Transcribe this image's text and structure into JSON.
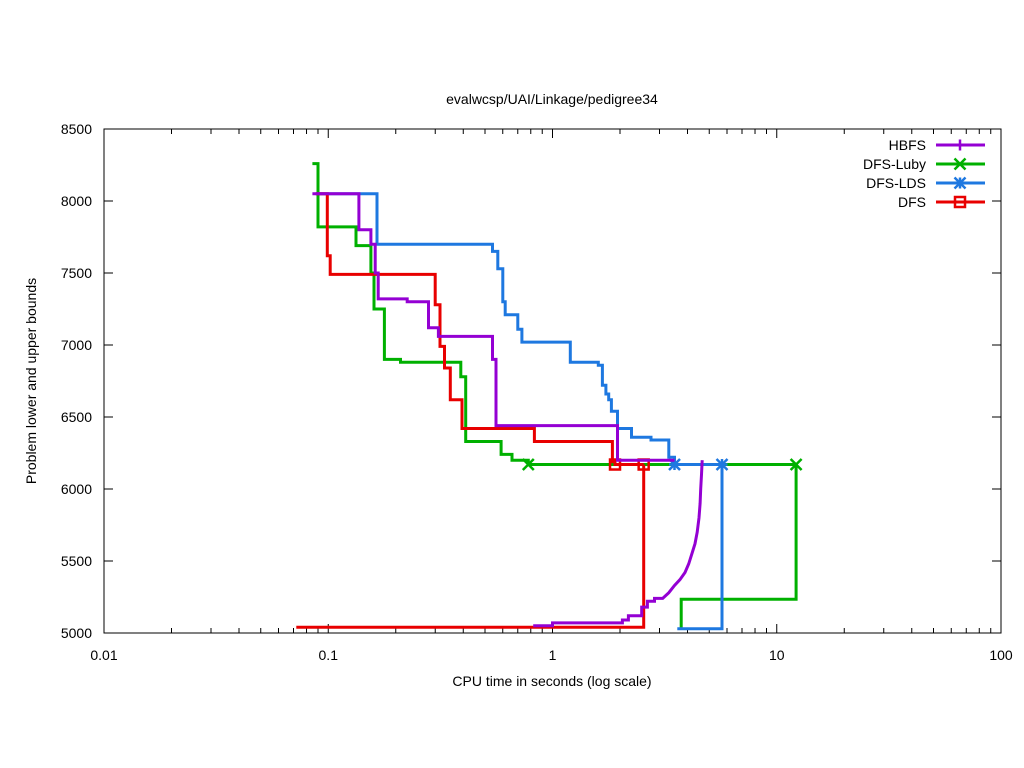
{
  "chart_data": {
    "type": "line",
    "title": "evalwcsp/UAI/Linkage/pedigree34",
    "xlabel": "CPU time in seconds (log scale)",
    "ylabel": "Problem lower and upper bounds",
    "x_scale": "log",
    "xlim": [
      0.01,
      100
    ],
    "ylim": [
      5000,
      8500
    ],
    "x_ticks": [
      0.01,
      0.1,
      1,
      10,
      100
    ],
    "x_tick_labels": [
      "0.01",
      "0.1",
      "1",
      "10",
      "100"
    ],
    "y_ticks": [
      5000,
      5500,
      6000,
      6500,
      7000,
      7500,
      8000,
      8500
    ],
    "y_tick_labels": [
      "5000",
      "5500",
      "6000",
      "6500",
      "7000",
      "7500",
      "8000",
      "8500"
    ],
    "grid": false,
    "legend_position": "top-right",
    "series": [
      {
        "name": "HBFS",
        "color": "#9400d3",
        "marker": "plus",
        "upper": [
          [
            0.085,
            8050
          ],
          [
            0.137,
            8050
          ],
          [
            0.137,
            7800
          ],
          [
            0.155,
            7800
          ],
          [
            0.155,
            7700
          ],
          [
            0.162,
            7700
          ],
          [
            0.162,
            7500
          ],
          [
            0.167,
            7500
          ],
          [
            0.167,
            7320
          ],
          [
            0.225,
            7320
          ],
          [
            0.225,
            7300
          ],
          [
            0.28,
            7300
          ],
          [
            0.28,
            7120
          ],
          [
            0.31,
            7120
          ],
          [
            0.31,
            7060
          ],
          [
            0.54,
            7060
          ],
          [
            0.54,
            6900
          ],
          [
            0.56,
            6900
          ],
          [
            0.56,
            6440
          ],
          [
            1.95,
            6440
          ],
          [
            1.95,
            6200
          ],
          [
            3.5,
            6200
          ]
        ],
        "upper_marks": [],
        "lower": [
          [
            0.82,
            5050
          ],
          [
            1.0,
            5050
          ],
          [
            1.0,
            5070
          ],
          [
            2.05,
            5070
          ],
          [
            2.05,
            5090
          ],
          [
            2.18,
            5090
          ],
          [
            2.18,
            5120
          ],
          [
            2.5,
            5120
          ],
          [
            2.5,
            5180
          ],
          [
            2.65,
            5180
          ],
          [
            2.65,
            5220
          ],
          [
            2.85,
            5220
          ],
          [
            2.85,
            5240
          ],
          [
            3.1,
            5240
          ],
          [
            3.3,
            5280
          ],
          [
            3.5,
            5330
          ],
          [
            3.7,
            5370
          ],
          [
            3.9,
            5420
          ],
          [
            4.05,
            5480
          ],
          [
            4.2,
            5560
          ],
          [
            4.32,
            5620
          ],
          [
            4.42,
            5700
          ],
          [
            4.5,
            5800
          ],
          [
            4.55,
            5900
          ],
          [
            4.58,
            6000
          ],
          [
            4.62,
            6100
          ],
          [
            4.65,
            6200
          ]
        ],
        "lower_marks": []
      },
      {
        "name": "DFS-Luby",
        "color": "#00b000",
        "marker": "x",
        "upper": [
          [
            0.085,
            8260
          ],
          [
            0.09,
            8260
          ],
          [
            0.09,
            7820
          ],
          [
            0.133,
            7820
          ],
          [
            0.133,
            7690
          ],
          [
            0.155,
            7690
          ],
          [
            0.155,
            7500
          ],
          [
            0.16,
            7500
          ],
          [
            0.16,
            7250
          ],
          [
            0.178,
            7250
          ],
          [
            0.178,
            6900
          ],
          [
            0.21,
            6900
          ],
          [
            0.21,
            6880
          ],
          [
            0.39,
            6880
          ],
          [
            0.39,
            6780
          ],
          [
            0.41,
            6780
          ],
          [
            0.41,
            6330
          ],
          [
            0.59,
            6330
          ],
          [
            0.59,
            6240
          ],
          [
            0.66,
            6240
          ],
          [
            0.66,
            6200
          ],
          [
            0.78,
            6200
          ],
          [
            0.78,
            6170
          ],
          [
            12.2,
            6170
          ]
        ],
        "upper_marks": [
          [
            0.78,
            6170
          ],
          [
            12.2,
            6170
          ]
        ],
        "lower": [
          [
            3.75,
            5030
          ],
          [
            3.75,
            5235
          ],
          [
            12.2,
            5235
          ],
          [
            12.2,
            6170
          ]
        ],
        "lower_marks": []
      },
      {
        "name": "DFS-LDS",
        "color": "#1e78e0",
        "marker": "star",
        "upper": [
          [
            0.088,
            8050
          ],
          [
            0.165,
            8050
          ],
          [
            0.165,
            7700
          ],
          [
            0.54,
            7700
          ],
          [
            0.54,
            7650
          ],
          [
            0.57,
            7650
          ],
          [
            0.57,
            7530
          ],
          [
            0.6,
            7530
          ],
          [
            0.6,
            7300
          ],
          [
            0.615,
            7300
          ],
          [
            0.615,
            7210
          ],
          [
            0.7,
            7210
          ],
          [
            0.7,
            7110
          ],
          [
            0.73,
            7110
          ],
          [
            0.73,
            7020
          ],
          [
            1.2,
            7020
          ],
          [
            1.2,
            6880
          ],
          [
            1.6,
            6880
          ],
          [
            1.6,
            6860
          ],
          [
            1.67,
            6860
          ],
          [
            1.67,
            6720
          ],
          [
            1.73,
            6720
          ],
          [
            1.73,
            6660
          ],
          [
            1.78,
            6660
          ],
          [
            1.78,
            6620
          ],
          [
            1.83,
            6620
          ],
          [
            1.83,
            6540
          ],
          [
            1.95,
            6540
          ],
          [
            1.95,
            6420
          ],
          [
            2.25,
            6420
          ],
          [
            2.25,
            6360
          ],
          [
            2.75,
            6360
          ],
          [
            2.75,
            6340
          ],
          [
            3.3,
            6340
          ],
          [
            3.3,
            6220
          ],
          [
            3.5,
            6220
          ],
          [
            3.5,
            6170
          ],
          [
            5.7,
            6170
          ]
        ],
        "upper_marks": [
          [
            3.5,
            6170
          ],
          [
            5.7,
            6170
          ]
        ],
        "lower": [
          [
            3.6,
            5030
          ],
          [
            5.7,
            5030
          ],
          [
            5.7,
            6170
          ]
        ],
        "lower_marks": []
      },
      {
        "name": "DFS",
        "color": "#e80000",
        "marker": "square",
        "upper": [
          [
            0.088,
            8050
          ],
          [
            0.099,
            8050
          ],
          [
            0.099,
            7620
          ],
          [
            0.102,
            7620
          ],
          [
            0.102,
            7490
          ],
          [
            0.3,
            7490
          ],
          [
            0.3,
            7280
          ],
          [
            0.315,
            7280
          ],
          [
            0.315,
            6990
          ],
          [
            0.33,
            6990
          ],
          [
            0.33,
            6840
          ],
          [
            0.35,
            6840
          ],
          [
            0.35,
            6620
          ],
          [
            0.395,
            6620
          ],
          [
            0.395,
            6420
          ],
          [
            0.83,
            6420
          ],
          [
            0.83,
            6330
          ],
          [
            1.85,
            6330
          ],
          [
            1.85,
            6190
          ],
          [
            1.9,
            6190
          ],
          [
            1.9,
            6170
          ],
          [
            2.55,
            6170
          ]
        ],
        "upper_marks": [
          [
            1.9,
            6170
          ],
          [
            2.55,
            6170
          ]
        ],
        "lower": [
          [
            0.072,
            5040
          ],
          [
            2.55,
            5040
          ],
          [
            2.55,
            6170
          ]
        ],
        "lower_marks": []
      }
    ]
  }
}
